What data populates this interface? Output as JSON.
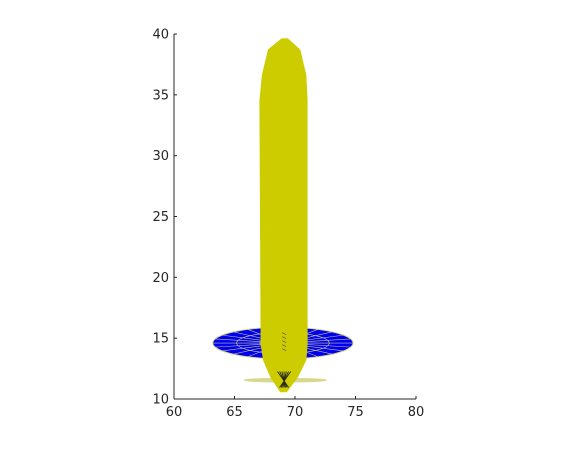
{
  "chart_data": {
    "type": "scatter",
    "title": "",
    "xlabel": "",
    "ylabel": "",
    "xlim": [
      60,
      80
    ],
    "ylim": [
      10,
      40
    ],
    "xticks": [
      60,
      65,
      70,
      75,
      80
    ],
    "yticks": [
      10,
      15,
      20,
      25,
      30,
      35,
      40
    ],
    "x_tick_labels": [
      "60",
      "65",
      "70",
      "75",
      "80"
    ],
    "y_tick_labels": [
      "10",
      "15",
      "20",
      "25",
      "30",
      "35",
      "40"
    ],
    "grid": false,
    "box": false,
    "objects": [
      {
        "name": "body",
        "kind": "tube",
        "color": "#CCCC00",
        "outline": [
          [
            68.8,
            10.6
          ],
          [
            69.3,
            10.6
          ],
          [
            70.2,
            11.8
          ],
          [
            70.9,
            13.2
          ],
          [
            71.0,
            14.5
          ],
          [
            71.0,
            34.5
          ],
          [
            70.9,
            36.6
          ],
          [
            70.4,
            38.7
          ],
          [
            69.4,
            39.6
          ],
          [
            68.9,
            39.6
          ],
          [
            67.8,
            38.7
          ],
          [
            67.3,
            36.6
          ],
          [
            67.1,
            34.5
          ],
          [
            67.2,
            14.5
          ],
          [
            67.4,
            13.2
          ],
          [
            68.0,
            11.8
          ]
        ]
      },
      {
        "name": "wing",
        "kind": "mesh-ellipse",
        "fill": "#0000EE",
        "mesh": "#D8D890",
        "center": [
          69.0,
          14.6
        ],
        "half_width": 5.8,
        "half_height": 1.3
      },
      {
        "name": "tail",
        "kind": "mesh-ellipse",
        "fill": "#CCCC00",
        "mesh": "#D8D890",
        "center": [
          69.2,
          11.55
        ],
        "half_width": 3.4,
        "half_height": 0.15
      }
    ]
  }
}
